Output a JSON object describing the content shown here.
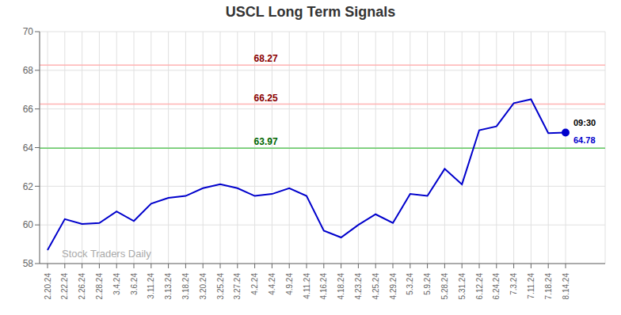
{
  "chart_data": {
    "type": "line",
    "title": "USCL Long Term Signals",
    "categories": [
      "2.20.24",
      "2.22.24",
      "2.26.24",
      "2.28.24",
      "3.4.24",
      "3.6.24",
      "3.11.24",
      "3.13.24",
      "3.18.24",
      "3.20.24",
      "3.25.24",
      "3.27.24",
      "4.2.24",
      "4.4.24",
      "4.9.24",
      "4.11.24",
      "4.16.24",
      "4.18.24",
      "4.23.24",
      "4.25.24",
      "4.29.24",
      "5.3.24",
      "5.9.24",
      "5.28.24",
      "5.31.24",
      "6.12.24",
      "6.24.24",
      "7.3.24",
      "7.11.24",
      "7.18.24",
      "8.14.24"
    ],
    "values": [
      58.7,
      60.3,
      60.05,
      60.1,
      60.7,
      60.2,
      61.1,
      61.4,
      61.5,
      61.9,
      62.1,
      61.9,
      61.5,
      61.6,
      61.9,
      61.5,
      59.7,
      59.35,
      60.0,
      60.55,
      60.1,
      61.6,
      61.5,
      62.9,
      62.1,
      64.9,
      65.1,
      66.3,
      66.5,
      64.75,
      64.78
    ],
    "color": "#0000cc",
    "reference_lines": [
      {
        "value": 68.27,
        "label": "68.27",
        "color": "#ffb3b3",
        "label_color": "#8b0000"
      },
      {
        "value": 66.25,
        "label": "66.25",
        "color": "#ffb3b3",
        "label_color": "#8b0000"
      },
      {
        "value": 63.97,
        "label": "63.97",
        "color": "#66cc66",
        "label_color": "#006600"
      }
    ],
    "annotations": [
      {
        "text": "09:30",
        "x": "8.14.24",
        "y": 64.78,
        "color": "#000000"
      },
      {
        "text": "64.78",
        "x": "8.14.24",
        "y": 64.78,
        "color": "#0000cc"
      }
    ],
    "watermark": {
      "text": "Stock Traders Daily",
      "color": "#aaaaaa"
    },
    "ylim": [
      58,
      70
    ],
    "yticks": [
      58,
      60,
      62,
      64,
      66,
      68,
      70
    ],
    "grid": true
  }
}
